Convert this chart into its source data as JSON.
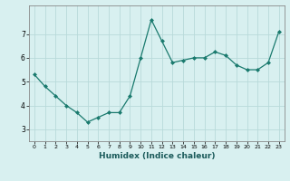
{
  "x": [
    0,
    1,
    2,
    3,
    4,
    5,
    6,
    7,
    8,
    9,
    10,
    11,
    12,
    13,
    14,
    15,
    16,
    17,
    18,
    19,
    20,
    21,
    22,
    23
  ],
  "y": [
    5.3,
    4.8,
    4.4,
    4.0,
    3.7,
    3.3,
    3.5,
    3.7,
    3.7,
    4.4,
    6.0,
    7.6,
    6.7,
    5.8,
    5.9,
    6.0,
    6.0,
    6.25,
    6.1,
    5.7,
    5.5,
    5.5,
    5.8,
    7.1
  ],
  "xlabel": "Humidex (Indice chaleur)",
  "line_color": "#1a7a6e",
  "marker_color": "#1a7a6e",
  "bg_color": "#d8f0f0",
  "grid_color": "#b8dada",
  "ylim": [
    2.5,
    8.2
  ],
  "xlim": [
    -0.5,
    23.5
  ],
  "yticks": [
    3,
    4,
    5,
    6,
    7
  ],
  "xticks": [
    0,
    1,
    2,
    3,
    4,
    5,
    6,
    7,
    8,
    9,
    10,
    11,
    12,
    13,
    14,
    15,
    16,
    17,
    18,
    19,
    20,
    21,
    22,
    23
  ]
}
